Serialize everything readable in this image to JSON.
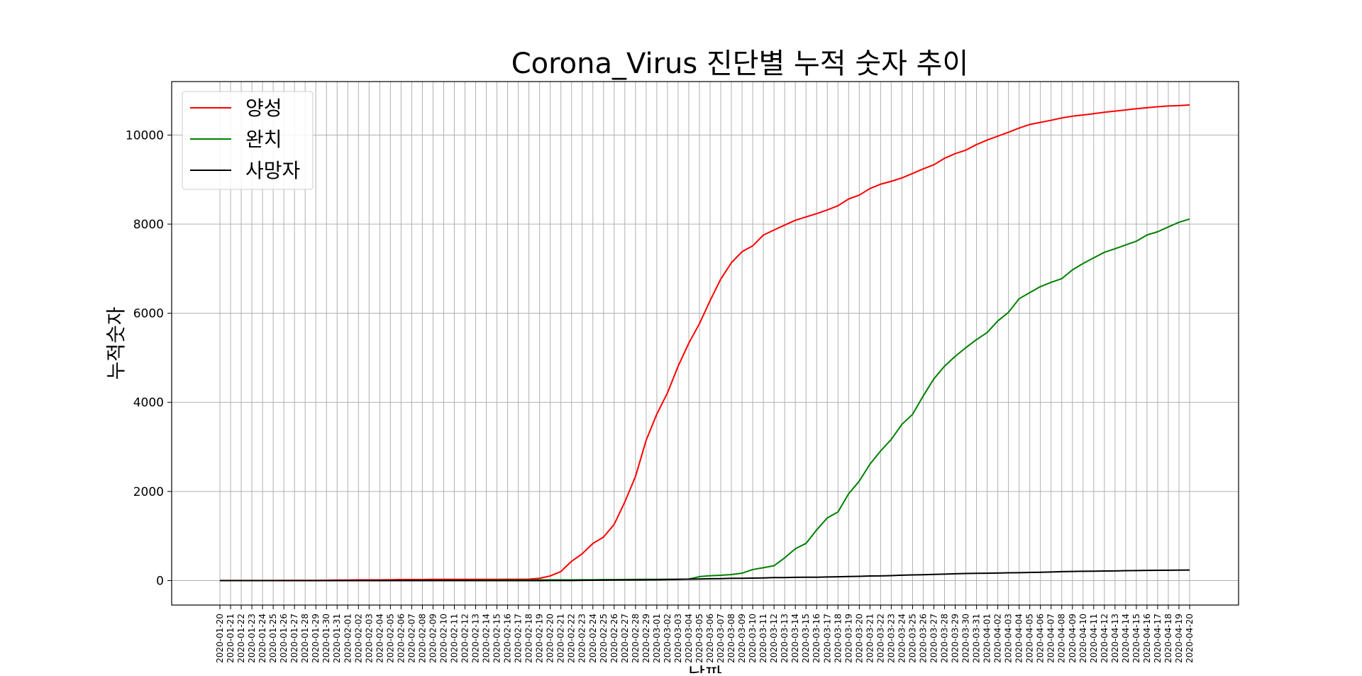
{
  "chart_data": {
    "type": "line",
    "title": "Corona_Virus 진단별 누적 숫자 추이",
    "xlabel": "날짜",
    "ylabel": "누적숫자",
    "x": [
      "2020-01-20",
      "2020-01-21",
      "2020-01-22",
      "2020-01-23",
      "2020-01-24",
      "2020-01-25",
      "2020-01-26",
      "2020-01-27",
      "2020-01-28",
      "2020-01-29",
      "2020-01-30",
      "2020-01-31",
      "2020-02-01",
      "2020-02-02",
      "2020-02-03",
      "2020-02-04",
      "2020-02-05",
      "2020-02-06",
      "2020-02-07",
      "2020-02-08",
      "2020-02-09",
      "2020-02-10",
      "2020-02-11",
      "2020-02-12",
      "2020-02-13",
      "2020-02-14",
      "2020-02-15",
      "2020-02-16",
      "2020-02-17",
      "2020-02-18",
      "2020-02-19",
      "2020-02-20",
      "2020-02-21",
      "2020-02-22",
      "2020-02-23",
      "2020-02-24",
      "2020-02-25",
      "2020-02-26",
      "2020-02-27",
      "2020-02-28",
      "2020-02-29",
      "2020-03-01",
      "2020-03-02",
      "2020-03-03",
      "2020-03-04",
      "2020-03-05",
      "2020-03-06",
      "2020-03-07",
      "2020-03-08",
      "2020-03-09",
      "2020-03-10",
      "2020-03-11",
      "2020-03-12",
      "2020-03-13",
      "2020-03-14",
      "2020-03-15",
      "2020-03-16",
      "2020-03-17",
      "2020-03-18",
      "2020-03-19",
      "2020-03-20",
      "2020-03-21",
      "2020-03-22",
      "2020-03-23",
      "2020-03-24",
      "2020-03-25",
      "2020-03-26",
      "2020-03-27",
      "2020-03-28",
      "2020-03-29",
      "2020-03-30",
      "2020-03-31",
      "2020-04-01",
      "2020-04-02",
      "2020-04-03",
      "2020-04-04",
      "2020-04-05",
      "2020-04-06",
      "2020-04-07",
      "2020-04-08",
      "2020-04-09",
      "2020-04-10",
      "2020-04-11",
      "2020-04-12",
      "2020-04-13",
      "2020-04-14",
      "2020-04-15",
      "2020-04-16",
      "2020-04-17",
      "2020-04-18",
      "2020-04-19",
      "2020-04-20"
    ],
    "series": [
      {
        "name": "양성",
        "color": "#ff0000",
        "values": [
          1,
          1,
          1,
          1,
          2,
          2,
          3,
          4,
          4,
          4,
          6,
          11,
          12,
          15,
          15,
          16,
          18,
          23,
          24,
          24,
          27,
          27,
          28,
          28,
          28,
          28,
          28,
          29,
          30,
          31,
          51,
          104,
          204,
          433,
          602,
          833,
          977,
          1261,
          1766,
          2337,
          3150,
          3736,
          4212,
          4812,
          5328,
          5766,
          6284,
          6767,
          7134,
          7382,
          7513,
          7755,
          7869,
          7979,
          8086,
          8162,
          8236,
          8320,
          8413,
          8565,
          8652,
          8799,
          8897,
          8961,
          9037,
          9137,
          9241,
          9332,
          9478,
          9583,
          9661,
          9786,
          9887,
          9976,
          10062,
          10156,
          10237,
          10284,
          10331,
          10384,
          10423,
          10450,
          10480,
          10512,
          10537,
          10564,
          10591,
          10613,
          10635,
          10653,
          10661,
          10674
        ]
      },
      {
        "name": "완치",
        "color": "#008000",
        "values": [
          0,
          0,
          0,
          0,
          0,
          0,
          0,
          0,
          0,
          0,
          0,
          0,
          0,
          0,
          0,
          0,
          0,
          0,
          1,
          1,
          3,
          3,
          4,
          4,
          7,
          7,
          9,
          9,
          10,
          10,
          16,
          16,
          16,
          16,
          18,
          18,
          22,
          22,
          24,
          26,
          28,
          28,
          30,
          30,
          34,
          88,
          108,
          118,
          135,
          166,
          247,
          288,
          333,
          510,
          714,
          834,
          1137,
          1407,
          1540,
          1947,
          2233,
          2612,
          2909,
          3166,
          3507,
          3730,
          4144,
          4528,
          4811,
          5033,
          5228,
          5408,
          5567,
          5828,
          6021,
          6325,
          6463,
          6598,
          6694,
          6776,
          6973,
          7117,
          7243,
          7368,
          7447,
          7534,
          7616,
          7757,
          7829,
          7937,
          8042,
          8114
        ]
      },
      {
        "name": "사망자",
        "color": "#000000",
        "values": [
          0,
          0,
          0,
          0,
          0,
          0,
          0,
          0,
          0,
          0,
          0,
          0,
          0,
          0,
          0,
          0,
          0,
          0,
          0,
          0,
          0,
          0,
          0,
          0,
          0,
          0,
          0,
          0,
          0,
          0,
          0,
          1,
          2,
          2,
          6,
          8,
          10,
          12,
          13,
          13,
          16,
          17,
          22,
          28,
          32,
          35,
          42,
          44,
          50,
          51,
          54,
          60,
          66,
          67,
          72,
          75,
          75,
          81,
          84,
          91,
          94,
          102,
          104,
          111,
          120,
          126,
          131,
          139,
          144,
          152,
          158,
          162,
          165,
          169,
          174,
          177,
          183,
          186,
          192,
          200,
          204,
          208,
          211,
          214,
          217,
          222,
          225,
          229,
          230,
          232,
          234,
          236
        ]
      }
    ],
    "yticks": [
      0,
      2000,
      4000,
      6000,
      8000,
      10000
    ],
    "ylim": [
      -550,
      11200
    ],
    "grid": true,
    "legend_position": "top-left"
  }
}
